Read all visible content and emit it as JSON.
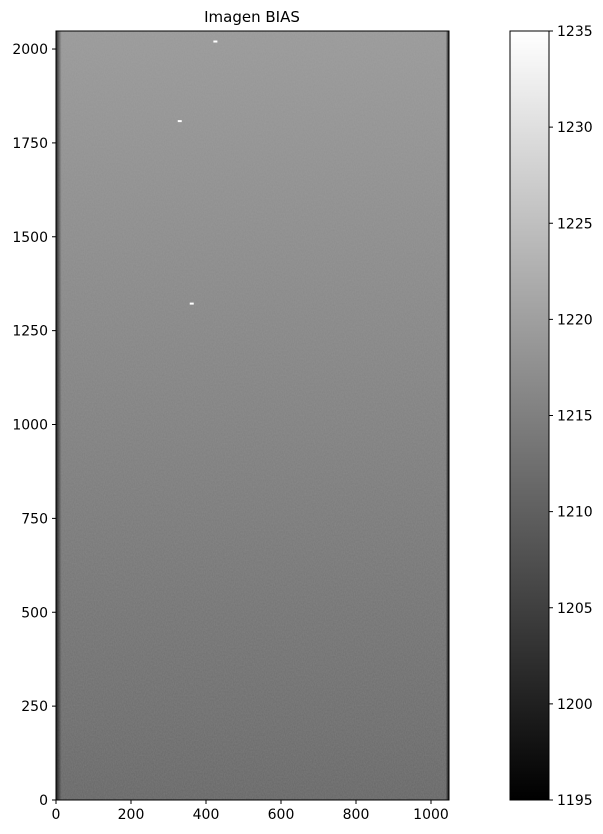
{
  "chart_data": {
    "type": "heatmap",
    "title": "Imagen BIAS",
    "xlabel": "",
    "ylabel": "",
    "image_shape": [
      2048,
      1048
    ],
    "xlim": [
      0,
      1048
    ],
    "ylim": [
      0,
      2048
    ],
    "origin": "lower",
    "cmap": "gray",
    "x_ticks": [
      0,
      200,
      400,
      600,
      800,
      1000
    ],
    "y_ticks": [
      0,
      250,
      500,
      750,
      1000,
      1250,
      1500,
      1750,
      2000
    ],
    "colorbar": {
      "vmin": 1195,
      "vmax": 1235,
      "ticks": [
        1195,
        1200,
        1205,
        1210,
        1215,
        1220,
        1225,
        1230,
        1235
      ]
    },
    "row_profile": [
      {
        "y": 0,
        "mean": 1211
      },
      {
        "y": 200,
        "mean": 1212
      },
      {
        "y": 500,
        "mean": 1213
      },
      {
        "y": 1000,
        "mean": 1215
      },
      {
        "y": 1500,
        "mean": 1217
      },
      {
        "y": 2048,
        "mean": 1219
      }
    ],
    "left_edge_dark_columns": [
      0,
      15
    ],
    "right_edge_dark_columns": [
      1040,
      1048
    ],
    "hot_pixels": [
      {
        "x": 425,
        "y": 2020
      },
      {
        "x": 330,
        "y": 1808
      },
      {
        "x": 362,
        "y": 1322
      }
    ]
  }
}
